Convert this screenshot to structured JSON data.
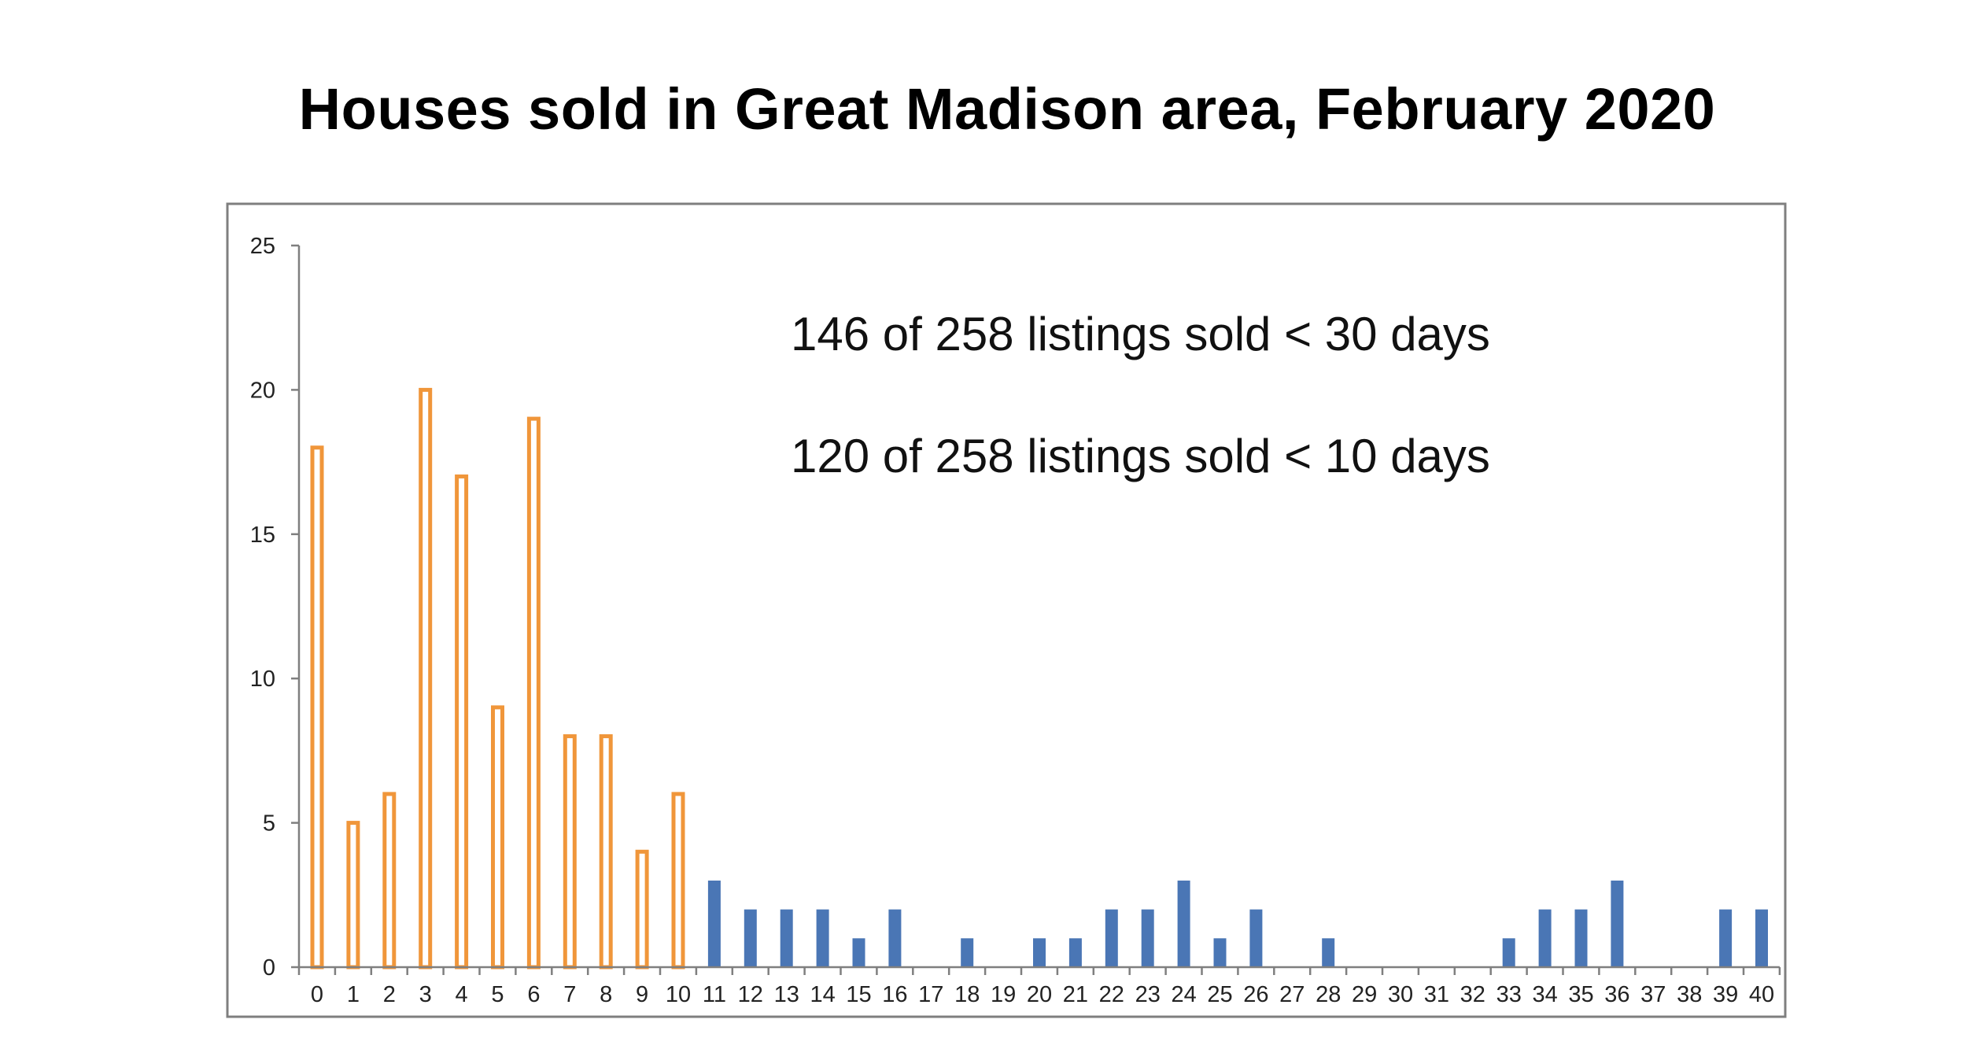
{
  "chart_data": {
    "type": "bar",
    "title": "Houses sold in Great Madison area, February 2020",
    "xlabel": "",
    "ylabel": "",
    "ylim": [
      0,
      25
    ],
    "yticks": [
      0,
      5,
      10,
      15,
      20,
      25
    ],
    "grid": false,
    "legend": "none",
    "categories": [
      "0",
      "1",
      "2",
      "3",
      "4",
      "5",
      "6",
      "7",
      "8",
      "9",
      "10",
      "11",
      "12",
      "13",
      "14",
      "15",
      "16",
      "17",
      "18",
      "19",
      "20",
      "21",
      "22",
      "23",
      "24",
      "25",
      "26",
      "27",
      "28",
      "29",
      "30",
      "31",
      "32",
      "33",
      "34",
      "35",
      "36",
      "37",
      "38",
      "39",
      "40"
    ],
    "values": [
      18,
      5,
      6,
      20,
      17,
      9,
      19,
      8,
      8,
      4,
      6,
      3,
      2,
      2,
      2,
      1,
      2,
      0,
      1,
      0,
      1,
      1,
      2,
      2,
      3,
      1,
      2,
      0,
      1,
      0,
      0,
      0,
      0,
      1,
      2,
      2,
      3,
      0,
      0,
      2,
      2
    ],
    "highlight_through_category": 10,
    "colors": {
      "highlight_outline": "#F0963A",
      "highlight_fill": "#FFFFFF",
      "regular_fill": "#4A76B5",
      "axis": "#7F7F7F",
      "frame": "#7F7F7F"
    },
    "annotations": [
      "146 of 258 listings sold < 30 days",
      "120 of 258 listings sold < 10 days"
    ]
  }
}
